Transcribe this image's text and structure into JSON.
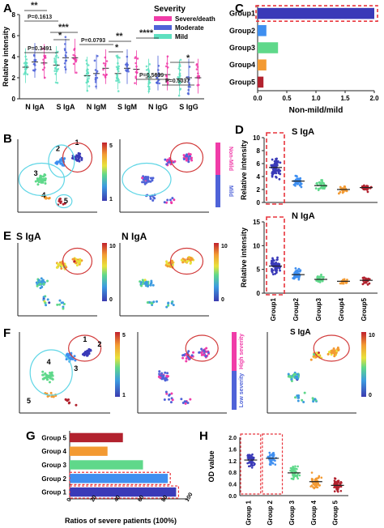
{
  "panel_letters": [
    "A",
    "B",
    "C",
    "D",
    "E",
    "F",
    "G",
    "H"
  ],
  "colors": {
    "severe": "#f03ca8",
    "moderate": "#4f63d8",
    "mild": "#5fe0c0",
    "grp1": "#3a3ab8",
    "grp2": "#3f8ff0",
    "grp3": "#5fd88a",
    "grp4": "#f39a32",
    "grp5": "#b2222e",
    "dash": "#e8343c",
    "ellipse": "#5fd6e6",
    "ellipse_red": "#d23a3a"
  },
  "panelA": {
    "legend_title": "Severity",
    "legend": [
      "Severe/death",
      "Moderate",
      "Mild"
    ],
    "annotations": [
      "**",
      "P=0.1613",
      "*",
      "***",
      "P=0.3491",
      "P=0.0793",
      "**",
      "*",
      "****",
      "P=0.5639",
      "P=0.5037",
      "*"
    ],
    "ylabel_text": "Relative intensity"
  },
  "panelB": {
    "labels": [
      "1",
      "2",
      "3",
      "4",
      "5"
    ],
    "bar_top": "Non-Mild",
    "bar_bottom": "Mild",
    "scale_max": "5",
    "scale_min": "1"
  },
  "panelE": {
    "titles": [
      "S IgA",
      "N IgA"
    ],
    "scale_max": "10",
    "scale_min": "0"
  },
  "panelF": {
    "title3": "S IgA",
    "bar_top": "High severity",
    "bar_bottom": "Low severity",
    "scale1_max": "5",
    "scale1_min": "1",
    "scale3_max": "10",
    "scale3_min": "0"
  },
  "panelD_titles": [
    "S IgA",
    "N IgA"
  ],
  "chart_data": [
    {
      "id": "A",
      "type": "scatter",
      "categories": [
        "N IgA",
        "S IgA",
        "N IgM",
        "S IgM",
        "N IgG",
        "S IgG"
      ],
      "series": [
        {
          "name": "Severe/death",
          "means": [
            3.4,
            3.9,
            2.9,
            2.8,
            2.3,
            2.0
          ]
        },
        {
          "name": "Moderate",
          "means": [
            3.5,
            3.9,
            2.4,
            2.9,
            2.3,
            2.0
          ]
        },
        {
          "name": "Mild",
          "means": [
            3.0,
            3.2,
            2.2,
            2.4,
            2.0,
            1.9
          ]
        }
      ],
      "xlabel": "",
      "ylabel": "Relative intensity",
      "ylim": [
        0,
        8
      ],
      "yticks": [
        "0",
        "2",
        "4",
        "6",
        "8"
      ]
    },
    {
      "id": "C",
      "type": "bar",
      "categories": [
        "Group1",
        "Group2",
        "Group3",
        "Group4",
        "Group5"
      ],
      "values": [
        2.0,
        0.15,
        0.35,
        0.15,
        0.1
      ],
      "xlabel": "Non-mild/mild",
      "xlim": [
        0,
        2.0
      ],
      "xticks": [
        "0.0",
        "0.5",
        "1.0",
        "1.5",
        "2.0"
      ]
    },
    {
      "id": "D-top",
      "type": "scatter",
      "title": "S IgA",
      "categories": [
        "Group1",
        "Group2",
        "Group3",
        "Group4",
        "Group5"
      ],
      "values": [
        5.4,
        3.3,
        2.6,
        2.0,
        2.3
      ],
      "ylabel": "Relative intensity",
      "ylim": [
        0,
        10
      ],
      "yticks": [
        "0",
        "2",
        "4",
        "6",
        "8",
        "10"
      ]
    },
    {
      "id": "D-bottom",
      "type": "scatter",
      "title": "N IgA",
      "categories": [
        "Group1",
        "Group2",
        "Group3",
        "Group4",
        "Group5"
      ],
      "values": [
        5.7,
        3.9,
        2.9,
        2.5,
        2.7
      ],
      "ylabel": "Relative intensity",
      "ylim": [
        0,
        15
      ],
      "yticks": [
        "0",
        "5",
        "10",
        "15"
      ]
    },
    {
      "id": "G",
      "type": "bar",
      "categories": [
        "Group 5",
        "Group 4",
        "Group 3",
        "Group 2",
        "Group 1"
      ],
      "values": [
        45,
        32,
        62,
        83,
        90
      ],
      "xlabel": "Ratios of severe patients (100%)",
      "xlim": [
        0,
        100
      ],
      "xticks": [
        "0",
        "20",
        "40",
        "60",
        "80",
        "100"
      ]
    },
    {
      "id": "H",
      "type": "scatter",
      "categories": [
        "Group 1",
        "Group 2",
        "Group 3",
        "Group 4",
        "Group 5"
      ],
      "values": [
        1.22,
        1.28,
        0.78,
        0.48,
        0.35
      ],
      "ylabel": "OD value",
      "ylim": [
        0.0,
        2.0
      ],
      "yticks": [
        "0.0",
        "0.4",
        "0.8",
        "1.2",
        "1.6",
        "2.0"
      ]
    }
  ]
}
